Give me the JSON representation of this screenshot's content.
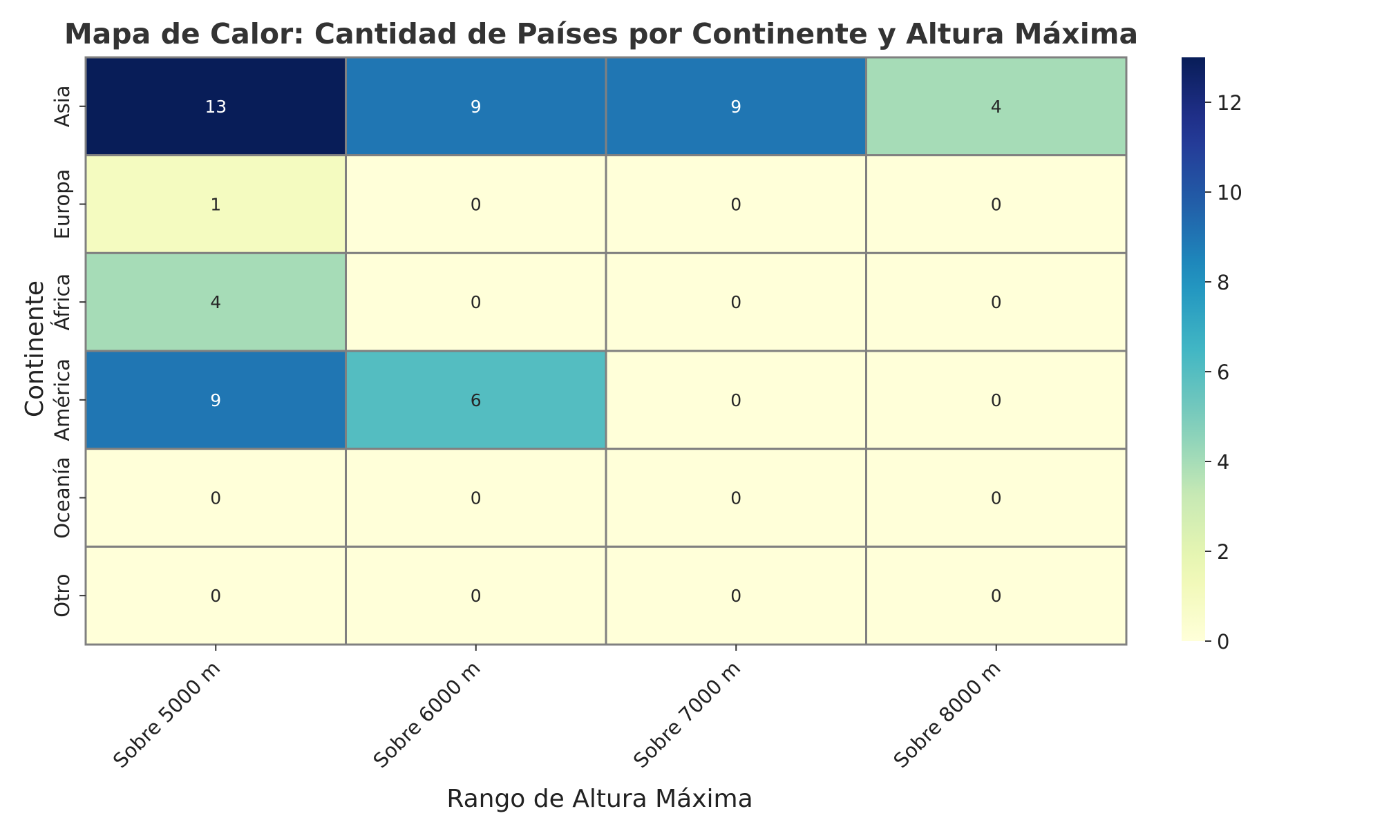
{
  "chart_data": {
    "type": "heatmap",
    "title": "Mapa de Calor: Cantidad de Países por Continente y Altura Máxima",
    "xlabel": "Rango de Altura Máxima",
    "ylabel": "Continente",
    "x_categories": [
      "Sobre 5000 m",
      "Sobre 6000 m",
      "Sobre 7000 m",
      "Sobre 8000 m"
    ],
    "y_categories": [
      "Asia",
      "Europa",
      "África",
      "América",
      "Oceanía",
      "Otro"
    ],
    "values": [
      [
        13,
        9,
        9,
        4
      ],
      [
        1,
        0,
        0,
        0
      ],
      [
        4,
        0,
        0,
        0
      ],
      [
        9,
        6,
        0,
        0
      ],
      [
        0,
        0,
        0,
        0
      ],
      [
        0,
        0,
        0,
        0
      ]
    ],
    "colorbar": {
      "min": 0,
      "max": 13,
      "ticks": [
        0,
        2,
        4,
        6,
        8,
        10,
        12
      ],
      "colormap": "YlGnBu"
    },
    "annotations": true,
    "grid": false
  }
}
